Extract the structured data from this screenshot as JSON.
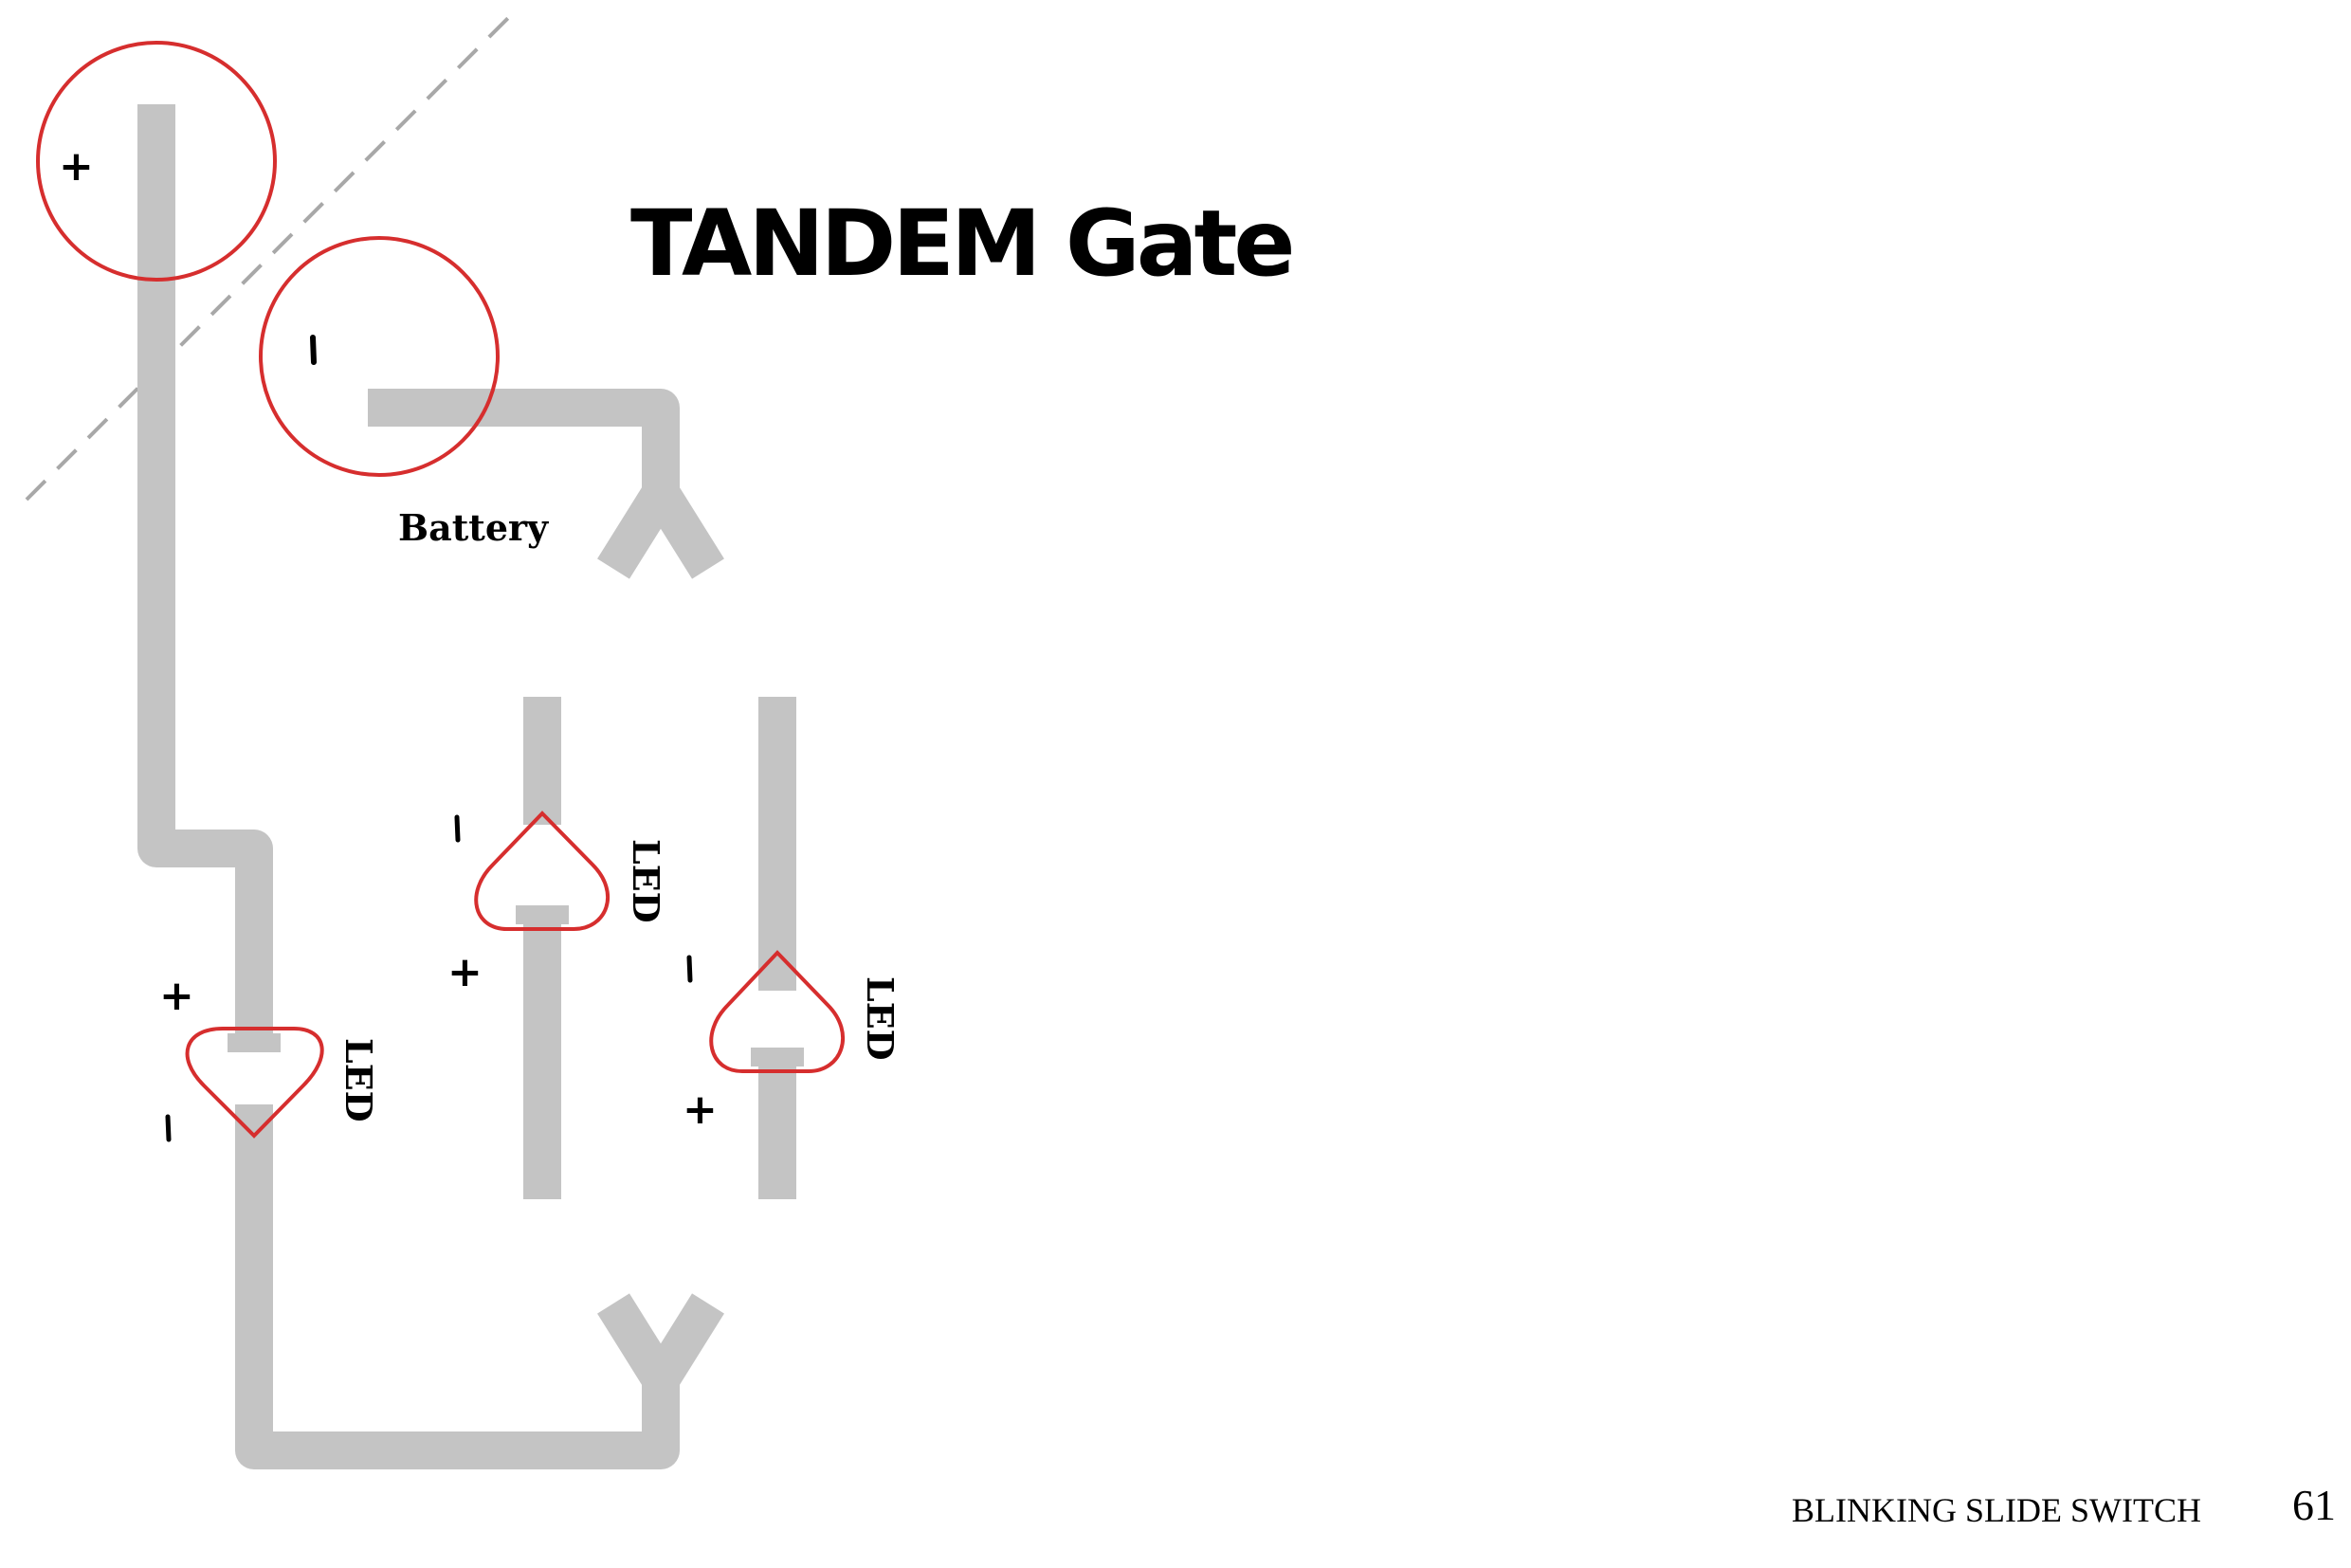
{
  "title": "TANDEM Gate",
  "battery": {
    "label": "Battery",
    "plus_sign": "+",
    "minus_sign": "-"
  },
  "leds": [
    {
      "label": "LED",
      "plus_sign": "+",
      "minus_sign": "-"
    },
    {
      "label": "LED",
      "plus_sign": "+",
      "minus_sign": "-"
    },
    {
      "label": "LED",
      "plus_sign": "+",
      "minus_sign": "-"
    }
  ],
  "footer": {
    "section": "BLINKING SLIDE SWITCH",
    "page_number": "61"
  },
  "colors": {
    "trace": "#c4c4c4",
    "outline": "#d62e2e",
    "fold_line": "#a8a8a8"
  }
}
